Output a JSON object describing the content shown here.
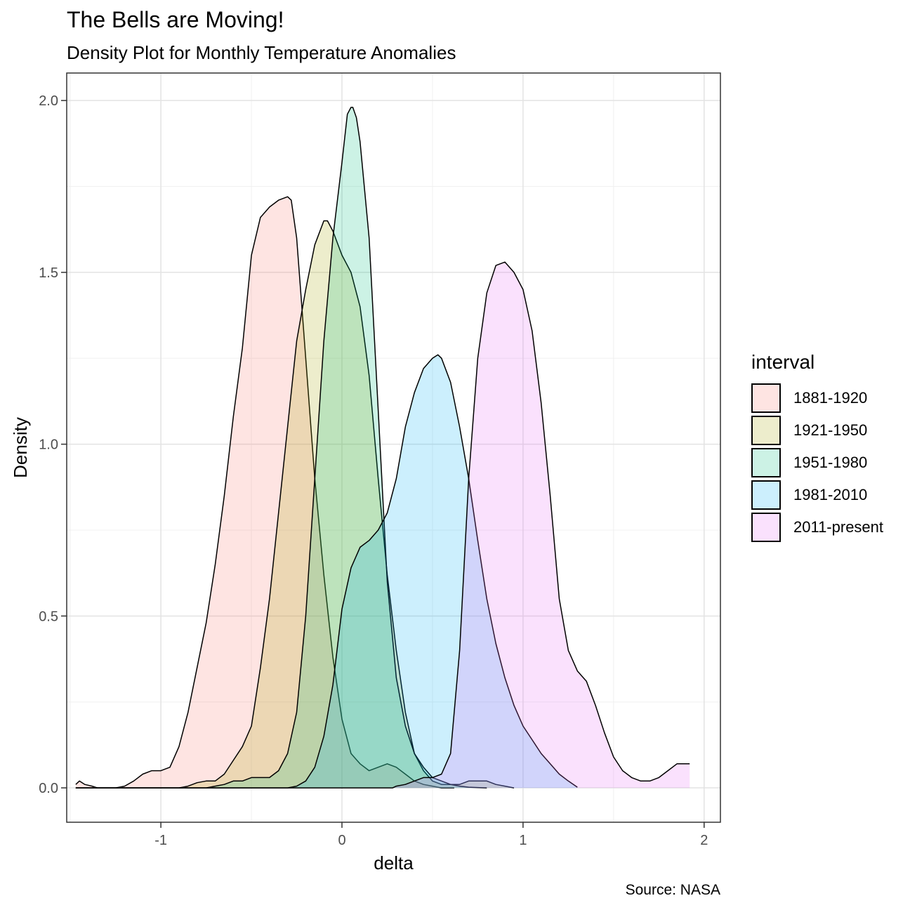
{
  "header": {
    "title": "The Bells are Moving!",
    "subtitle": "Density Plot for Monthly Temperature Anomalies"
  },
  "footer": {
    "caption": "Source: NASA"
  },
  "legend": {
    "title": "interval",
    "position": "right",
    "items": [
      {
        "label": "1881-1920",
        "color": "#F8766D"
      },
      {
        "label": "1921-1950",
        "color": "#A3A500"
      },
      {
        "label": "1951-1980",
        "color": "#00BF7D"
      },
      {
        "label": "1981-2010",
        "color": "#00B0F6"
      },
      {
        "label": "2011-present",
        "color": "#E76BF3"
      }
    ]
  },
  "chart_data": {
    "type": "area",
    "title": "The Bells are Moving!",
    "subtitle": "Density Plot for Monthly Temperature Anomalies",
    "xlabel": "delta",
    "ylabel": "Density",
    "xlim": [
      -1.52,
      2.09
    ],
    "ylim": [
      -0.1,
      2.08
    ],
    "xticks": [
      -1,
      0,
      1,
      2
    ],
    "xtick_labels": [
      "-1",
      "0",
      "1",
      "2"
    ],
    "yticks": [
      0,
      0.5,
      1,
      1.5,
      2
    ],
    "ytick_labels": [
      "0.0",
      "0.5",
      "1.0",
      "1.5",
      "2.0"
    ],
    "grid": true,
    "fill_opacity": 0.2,
    "series": [
      {
        "name": "1881-1920",
        "color": "#F8766D",
        "x": [
          -1.47,
          -1.45,
          -1.42,
          -1.38,
          -1.35,
          -1.3,
          -1.25,
          -1.2,
          -1.15,
          -1.1,
          -1.05,
          -1.0,
          -0.95,
          -0.9,
          -0.85,
          -0.8,
          -0.75,
          -0.7,
          -0.65,
          -0.6,
          -0.55,
          -0.5,
          -0.45,
          -0.4,
          -0.35,
          -0.3,
          -0.28,
          -0.25,
          -0.2,
          -0.15,
          -0.1,
          -0.05,
          0.0,
          0.05,
          0.1,
          0.15,
          0.2,
          0.25,
          0.3,
          0.35,
          0.4,
          0.45,
          0.5,
          0.55,
          0.6,
          0.62
        ],
        "y": [
          0.01,
          0.02,
          0.01,
          0.005,
          0,
          0,
          0,
          0.005,
          0.02,
          0.04,
          0.05,
          0.05,
          0.06,
          0.12,
          0.22,
          0.35,
          0.48,
          0.65,
          0.85,
          1.08,
          1.28,
          1.55,
          1.66,
          1.69,
          1.71,
          1.72,
          1.71,
          1.6,
          1.25,
          0.9,
          0.62,
          0.38,
          0.2,
          0.1,
          0.07,
          0.05,
          0.06,
          0.07,
          0.06,
          0.04,
          0.02,
          0.01,
          0.005,
          0,
          0,
          0
        ]
      },
      {
        "name": "1921-1950",
        "color": "#A3A500",
        "x": [
          -1.47,
          -0.9,
          -0.85,
          -0.8,
          -0.75,
          -0.7,
          -0.65,
          -0.6,
          -0.55,
          -0.5,
          -0.45,
          -0.4,
          -0.35,
          -0.3,
          -0.25,
          -0.2,
          -0.15,
          -0.1,
          -0.08,
          -0.05,
          0.0,
          0.05,
          0.1,
          0.15,
          0.2,
          0.25,
          0.3,
          0.35,
          0.4,
          0.45,
          0.5,
          0.55,
          0.6,
          0.65,
          0.7,
          0.75,
          0.8,
          0.85,
          0.9,
          0.95
        ],
        "y": [
          0,
          0,
          0.005,
          0.015,
          0.02,
          0.02,
          0.04,
          0.08,
          0.12,
          0.18,
          0.35,
          0.55,
          0.8,
          1.05,
          1.3,
          1.45,
          1.58,
          1.65,
          1.65,
          1.62,
          1.55,
          1.5,
          1.4,
          1.2,
          0.9,
          0.62,
          0.4,
          0.22,
          0.1,
          0.05,
          0.02,
          0.01,
          0.01,
          0.01,
          0.02,
          0.02,
          0.02,
          0.01,
          0.005,
          0
        ]
      },
      {
        "name": "1951-1980",
        "color": "#00BF7D",
        "x": [
          -1.47,
          -0.75,
          -0.7,
          -0.65,
          -0.6,
          -0.55,
          -0.5,
          -0.45,
          -0.4,
          -0.35,
          -0.3,
          -0.25,
          -0.2,
          -0.15,
          -0.1,
          -0.05,
          0.0,
          0.03,
          0.05,
          0.06,
          0.08,
          0.1,
          0.15,
          0.2,
          0.25,
          0.3,
          0.35,
          0.4,
          0.45,
          0.5,
          0.55,
          0.6,
          0.65,
          0.7,
          0.75,
          0.8
        ],
        "y": [
          0,
          0,
          0.005,
          0.01,
          0.02,
          0.02,
          0.03,
          0.03,
          0.03,
          0.05,
          0.1,
          0.22,
          0.5,
          0.9,
          1.3,
          1.6,
          1.82,
          1.96,
          1.98,
          1.98,
          1.95,
          1.88,
          1.6,
          1.1,
          0.6,
          0.32,
          0.18,
          0.1,
          0.06,
          0.03,
          0.02,
          0.01,
          0.005,
          0.002,
          0.001,
          0
        ]
      },
      {
        "name": "1981-2010",
        "color": "#00B0F6",
        "x": [
          -1.47,
          -0.3,
          -0.25,
          -0.2,
          -0.15,
          -0.1,
          -0.05,
          0.0,
          0.05,
          0.1,
          0.15,
          0.2,
          0.25,
          0.3,
          0.35,
          0.4,
          0.45,
          0.5,
          0.53,
          0.55,
          0.6,
          0.65,
          0.7,
          0.75,
          0.8,
          0.85,
          0.9,
          0.95,
          1.0,
          1.05,
          1.1,
          1.15,
          1.2,
          1.25,
          1.3
        ],
        "y": [
          0,
          0,
          0.005,
          0.02,
          0.06,
          0.15,
          0.3,
          0.52,
          0.64,
          0.7,
          0.72,
          0.75,
          0.8,
          0.9,
          1.05,
          1.15,
          1.22,
          1.25,
          1.26,
          1.25,
          1.18,
          1.05,
          0.9,
          0.72,
          0.55,
          0.42,
          0.32,
          0.24,
          0.18,
          0.14,
          0.1,
          0.07,
          0.04,
          0.02,
          0.002
        ]
      },
      {
        "name": "2011-present",
        "color": "#E76BF3",
        "x": [
          -1.47,
          0.28,
          0.3,
          0.35,
          0.4,
          0.45,
          0.5,
          0.55,
          0.6,
          0.65,
          0.7,
          0.75,
          0.8,
          0.85,
          0.9,
          0.95,
          1.0,
          1.05,
          1.1,
          1.15,
          1.2,
          1.25,
          1.3,
          1.35,
          1.4,
          1.45,
          1.5,
          1.55,
          1.6,
          1.65,
          1.7,
          1.75,
          1.8,
          1.85,
          1.9,
          1.92
        ],
        "y": [
          0,
          0,
          0.005,
          0.01,
          0.02,
          0.03,
          0.03,
          0.04,
          0.1,
          0.4,
          0.9,
          1.25,
          1.44,
          1.52,
          1.53,
          1.5,
          1.45,
          1.33,
          1.12,
          0.85,
          0.55,
          0.4,
          0.34,
          0.31,
          0.24,
          0.16,
          0.09,
          0.05,
          0.03,
          0.02,
          0.02,
          0.03,
          0.05,
          0.07,
          0.07,
          0.07
        ]
      }
    ]
  }
}
